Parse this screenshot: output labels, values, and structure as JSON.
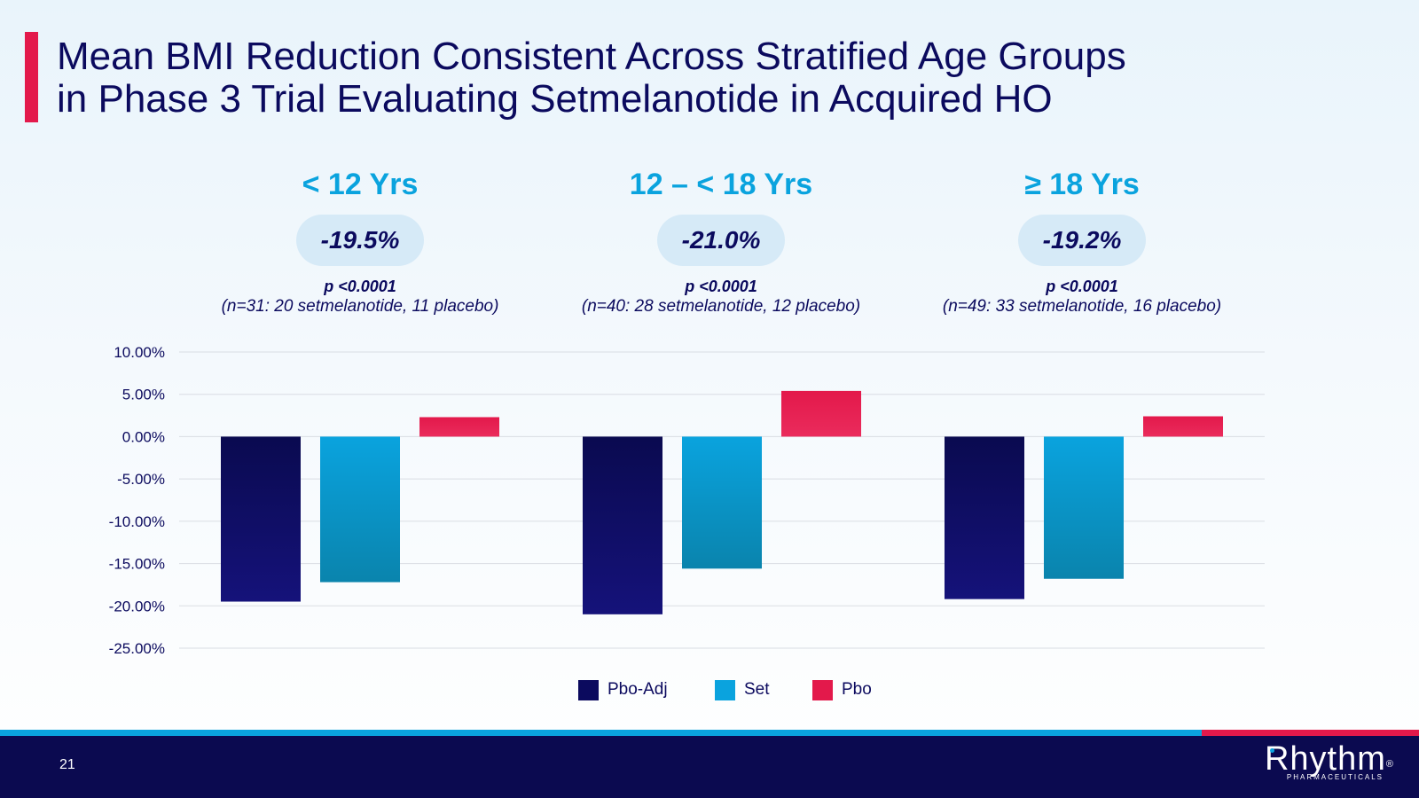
{
  "title": {
    "line1": "Mean BMI Reduction Consistent Across Stratified Age Groups",
    "line2": "in Phase 3 Trial Evaluating Setmelanotide in Acquired HO"
  },
  "groups": [
    {
      "label": "< 12 Yrs",
      "effect": "-19.5%",
      "p_value": "p <0.0001",
      "n_text": "(n=31: 20 setmelanotide, 11 placebo)"
    },
    {
      "label": "12 – < 18 Yrs",
      "effect": "-21.0%",
      "p_value": "p <0.0001",
      "n_text": "(n=40: 28 setmelanotide, 12 placebo)"
    },
    {
      "label": "≥ 18 Yrs",
      "effect": "-19.2%",
      "p_value": "p <0.0001",
      "n_text": "(n=49: 33 setmelanotide, 16 placebo)"
    }
  ],
  "chart_data": {
    "type": "bar",
    "categories": [
      "< 12 Yrs",
      "12 – < 18 Yrs",
      "≥ 18 Yrs"
    ],
    "series": [
      {
        "name": "Pbo-Adj",
        "values": [
          -19.5,
          -21.0,
          -19.2
        ],
        "color": "#0b0a5e"
      },
      {
        "name": "Set",
        "values": [
          -17.2,
          -15.6,
          -16.8
        ],
        "color": "#0aa3de"
      },
      {
        "name": "Pbo",
        "values": [
          2.3,
          5.4,
          2.4
        ],
        "color": "#e3194b"
      }
    ],
    "ylim": [
      -25,
      10
    ],
    "yticks": [
      10,
      5,
      0,
      -5,
      -10,
      -15,
      -20,
      -25
    ],
    "ytick_labels": [
      "10.00%",
      "5.00%",
      "0.00%",
      "-5.00%",
      "-10.00%",
      "-15.00%",
      "-20.00%",
      "-25.00%"
    ],
    "grid": true,
    "legend": "bottom"
  },
  "legend": [
    {
      "label": "Pbo-Adj",
      "color": "#0b0a5e"
    },
    {
      "label": "Set",
      "color": "#0aa3de"
    },
    {
      "label": "Pbo",
      "color": "#e3194b"
    }
  ],
  "footer": {
    "page_number": "21",
    "logo_name": "Rhythm",
    "logo_reg": "®",
    "logo_sub": "PHARMACEUTICALS"
  }
}
